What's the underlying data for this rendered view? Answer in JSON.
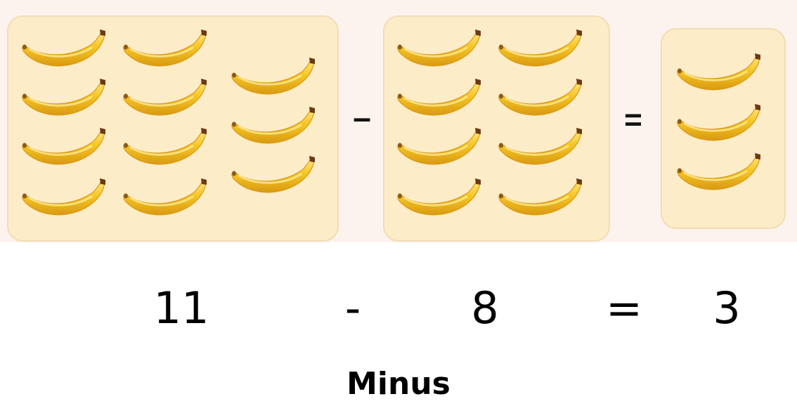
{
  "colors": {
    "box_fill": "#fdecc8",
    "box_border": "#f1dcb4",
    "banana_body": "#f6c523",
    "banana_highlight": "#ffe680",
    "banana_shade": "#d99a13",
    "banana_tip": "#6b3a14"
  },
  "icons": {
    "item": "banana-icon",
    "minus": "minus-sign",
    "equals": "equals-sign"
  },
  "groups": [
    {
      "name": "minuend",
      "count": 11
    },
    {
      "name": "subtrahend",
      "count": 8
    },
    {
      "name": "difference",
      "count": 3
    }
  ],
  "equation": {
    "minuend": "11",
    "minus": "-",
    "subtrahend": "8",
    "equals": "=",
    "difference": "3"
  },
  "caption": "Minus"
}
